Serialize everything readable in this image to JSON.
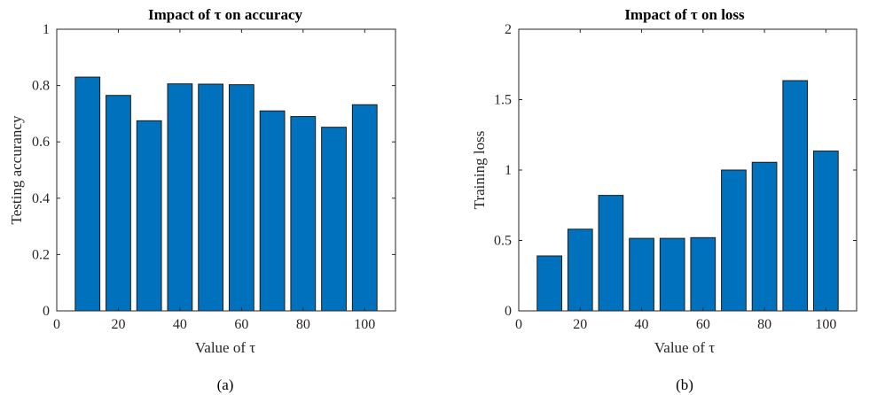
{
  "colors": {
    "bar": "#0072bd",
    "bar_edge": "#1a1a1a",
    "axis": "#262626"
  },
  "chart_data": [
    {
      "type": "bar",
      "title": "Impact of τ on accuracy",
      "xlabel": "Value of τ",
      "ylabel": "Testing accurancy",
      "caption": "(a)",
      "x": [
        10,
        20,
        30,
        40,
        50,
        60,
        70,
        80,
        90,
        100
      ],
      "values": [
        0.83,
        0.765,
        0.675,
        0.806,
        0.805,
        0.803,
        0.71,
        0.69,
        0.652,
        0.732
      ],
      "xlim": [
        0,
        110
      ],
      "ylim": [
        0,
        1
      ],
      "xticks": [
        0,
        20,
        40,
        60,
        80,
        100
      ],
      "xtick_labels": [
        "0",
        "20",
        "40",
        "60",
        "80",
        "100"
      ],
      "yticks": [
        0,
        0.2,
        0.4,
        0.6,
        0.8,
        1
      ],
      "ytick_labels": [
        "0",
        "0.2",
        "0.4",
        "0.6",
        "0.8",
        "1"
      ],
      "grid": false
    },
    {
      "type": "bar",
      "title": "Impact of τ on loss",
      "xlabel": "Value of τ",
      "ylabel": "Training loss",
      "caption": "(b)",
      "x": [
        10,
        20,
        30,
        40,
        50,
        60,
        70,
        80,
        90,
        100
      ],
      "values": [
        0.39,
        0.58,
        0.82,
        0.515,
        0.515,
        0.52,
        1.0,
        1.055,
        1.635,
        1.135
      ],
      "xlim": [
        0,
        110
      ],
      "ylim": [
        0,
        2
      ],
      "xticks": [
        0,
        20,
        40,
        60,
        80,
        100
      ],
      "xtick_labels": [
        "0",
        "20",
        "40",
        "60",
        "80",
        "100"
      ],
      "yticks": [
        0,
        0.5,
        1,
        1.5,
        2
      ],
      "ytick_labels": [
        "0",
        "0.5",
        "1",
        "1.5",
        "2"
      ],
      "grid": false
    }
  ]
}
